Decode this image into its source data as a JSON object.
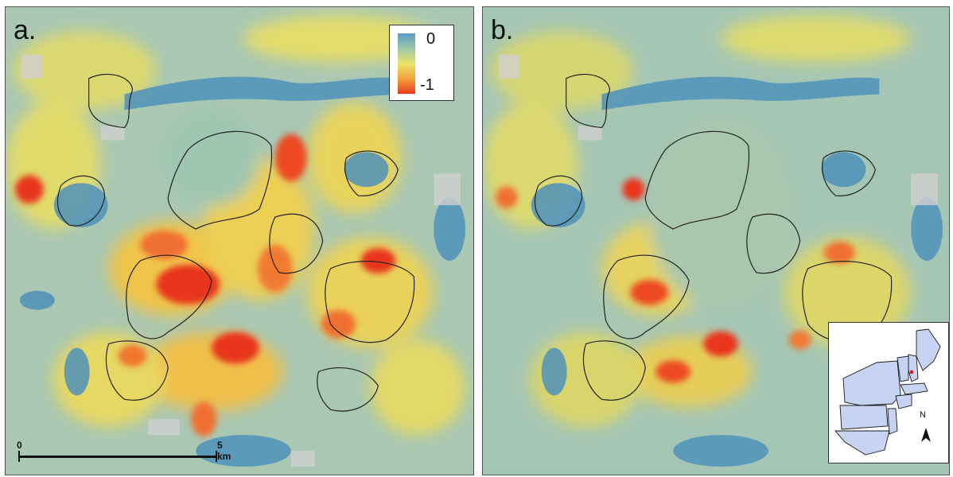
{
  "panels": [
    {
      "label": "a."
    },
    {
      "label": "b."
    }
  ],
  "legend": {
    "max_label": "0",
    "min_label": "-1",
    "colors": [
      "#5d9cc4",
      "#9cc7a9",
      "#e9e56a",
      "#f4a33d",
      "#e83a1f"
    ]
  },
  "scalebar": {
    "start_label": "0",
    "end_label": "5 km"
  },
  "inset": {
    "north_label": "N",
    "location_marker_color": "#d42020",
    "state_fill": "#c7d3f2"
  },
  "colors": {
    "water": "#4f92bb",
    "hot": "#e8351c",
    "warm": "#f7a43a",
    "mid": "#e7e16a",
    "cool": "#8fbfa9",
    "developed": "#c9c9c9"
  }
}
